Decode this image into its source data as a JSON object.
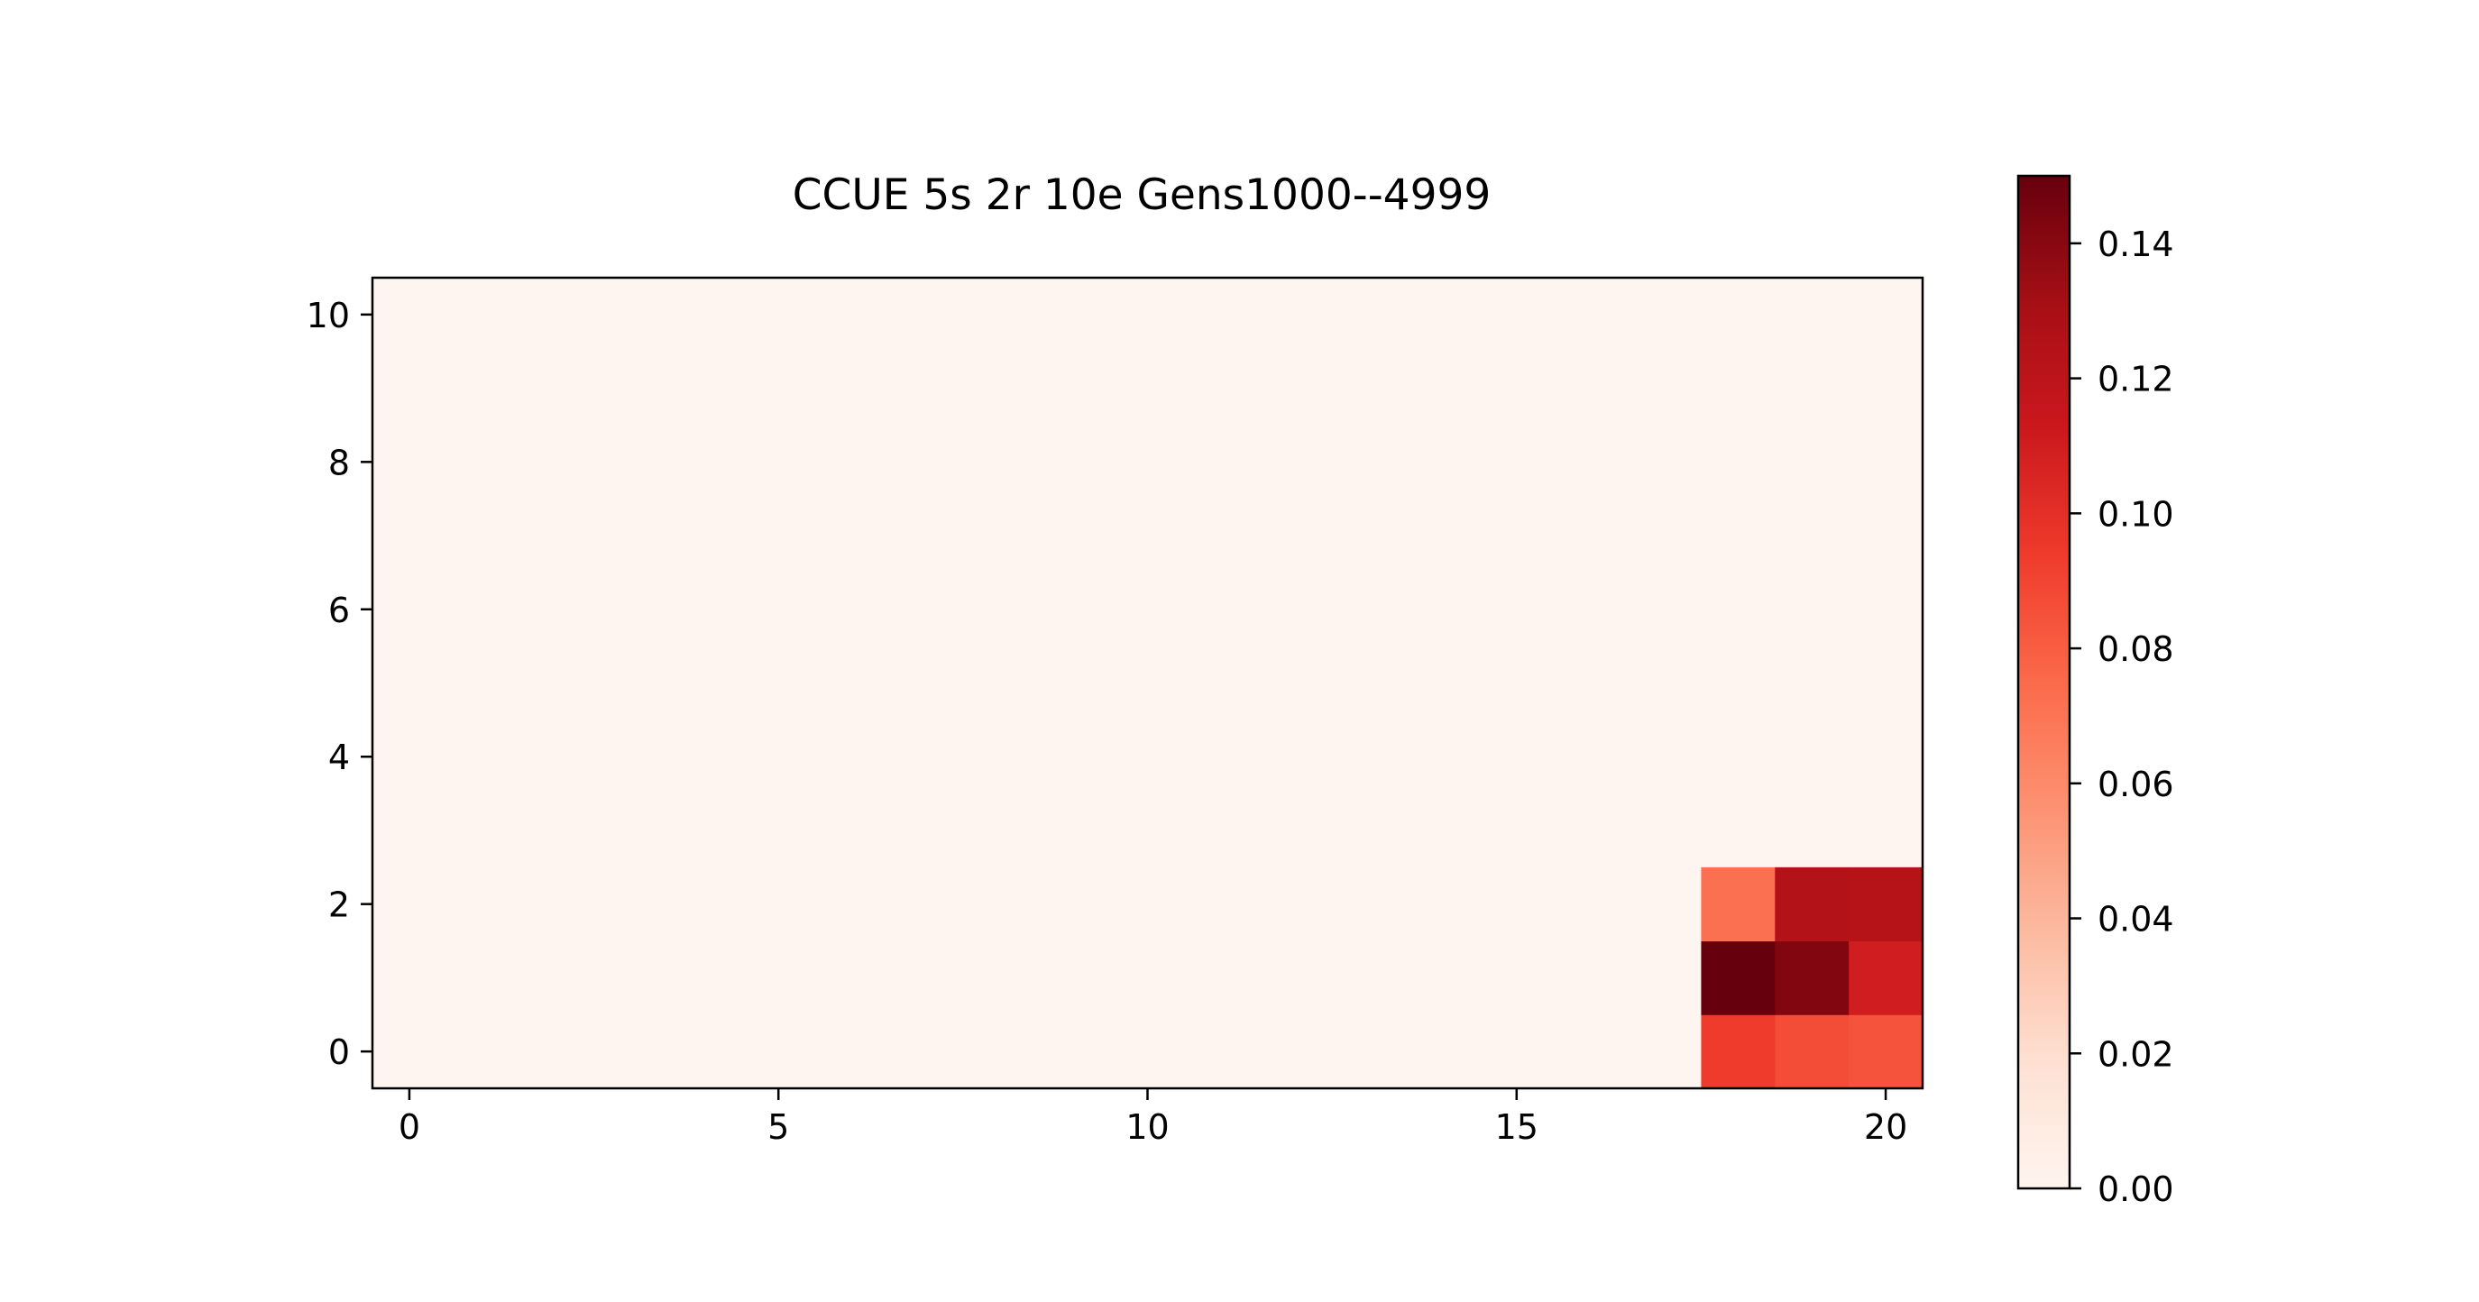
{
  "chart_data": {
    "type": "heatmap",
    "title": "CCUE 5s 2r 10e Gens1000--4999",
    "xlabel": "",
    "ylabel": "",
    "x_range": [
      -0.5,
      20.5
    ],
    "y_range": [
      -0.5,
      10.5
    ],
    "x_ticks": [
      "0",
      "5",
      "10",
      "15",
      "20"
    ],
    "x_tick_values": [
      0,
      5,
      10,
      15,
      20
    ],
    "y_ticks": [
      "0",
      "2",
      "4",
      "6",
      "8",
      "10"
    ],
    "y_tick_values": [
      0,
      2,
      4,
      6,
      8,
      10
    ],
    "grid": false,
    "origin": "lower",
    "background_value": 0.0,
    "cells": [
      {
        "x": 18,
        "y": 0,
        "value": 0.094
      },
      {
        "x": 19,
        "y": 0,
        "value": 0.087
      },
      {
        "x": 20,
        "y": 0,
        "value": 0.084
      },
      {
        "x": 18,
        "y": 1,
        "value": 0.15
      },
      {
        "x": 19,
        "y": 1,
        "value": 0.142
      },
      {
        "x": 20,
        "y": 1,
        "value": 0.11
      },
      {
        "x": 18,
        "y": 2,
        "value": 0.072
      },
      {
        "x": 19,
        "y": 2,
        "value": 0.125
      },
      {
        "x": 20,
        "y": 2,
        "value": 0.123
      }
    ],
    "colorbar": {
      "colormap": "Reds",
      "vmin": 0.0,
      "vmax": 0.15,
      "tick_values": [
        0.0,
        0.02,
        0.04,
        0.06,
        0.08,
        0.1,
        0.12,
        0.14
      ],
      "tick_labels": [
        "0.00",
        "0.02",
        "0.04",
        "0.06",
        "0.08",
        "0.10",
        "0.12",
        "0.14"
      ]
    }
  }
}
